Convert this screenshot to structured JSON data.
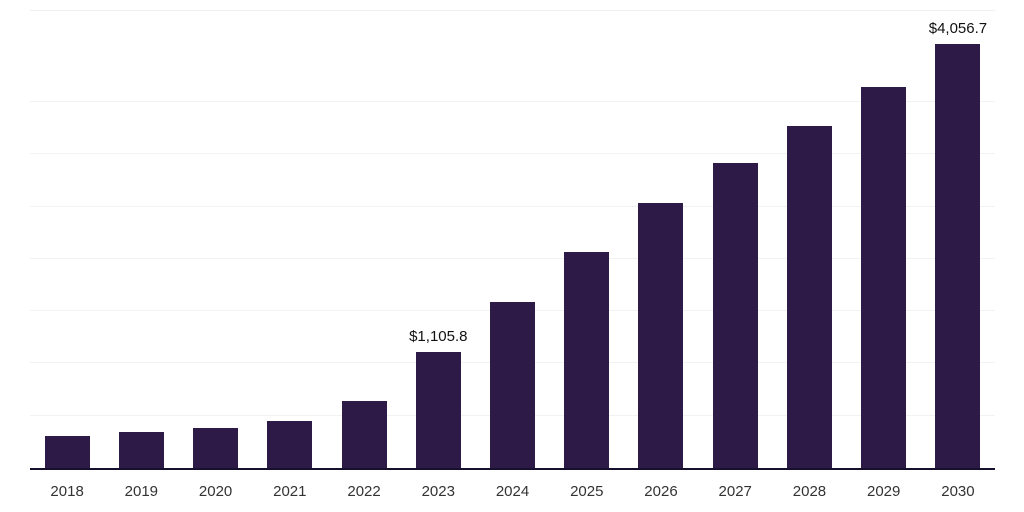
{
  "chart_data": {
    "type": "bar",
    "title": "",
    "xlabel": "",
    "ylabel": "",
    "categories": [
      "2018",
      "2019",
      "2020",
      "2021",
      "2022",
      "2023",
      "2024",
      "2025",
      "2026",
      "2027",
      "2028",
      "2029",
      "2030"
    ],
    "values": [
      310,
      345,
      385,
      450,
      640,
      1105.8,
      1585,
      2070,
      2530,
      2920,
      3270,
      3640,
      4056.7
    ],
    "data_labels": {
      "2023": "$1,105.8",
      "2030": "$4,056.7"
    },
    "ylim": [
      0,
      4400
    ],
    "grid": "horizontal-faint",
    "gridline_step": 500,
    "legend": "none",
    "colors": {
      "bar": "#2e1a47",
      "axis_line": "#16102e",
      "gridline": "#f2f2f2",
      "value_label": "#111111",
      "tick_label": "#333333",
      "background": "#ffffff"
    }
  }
}
